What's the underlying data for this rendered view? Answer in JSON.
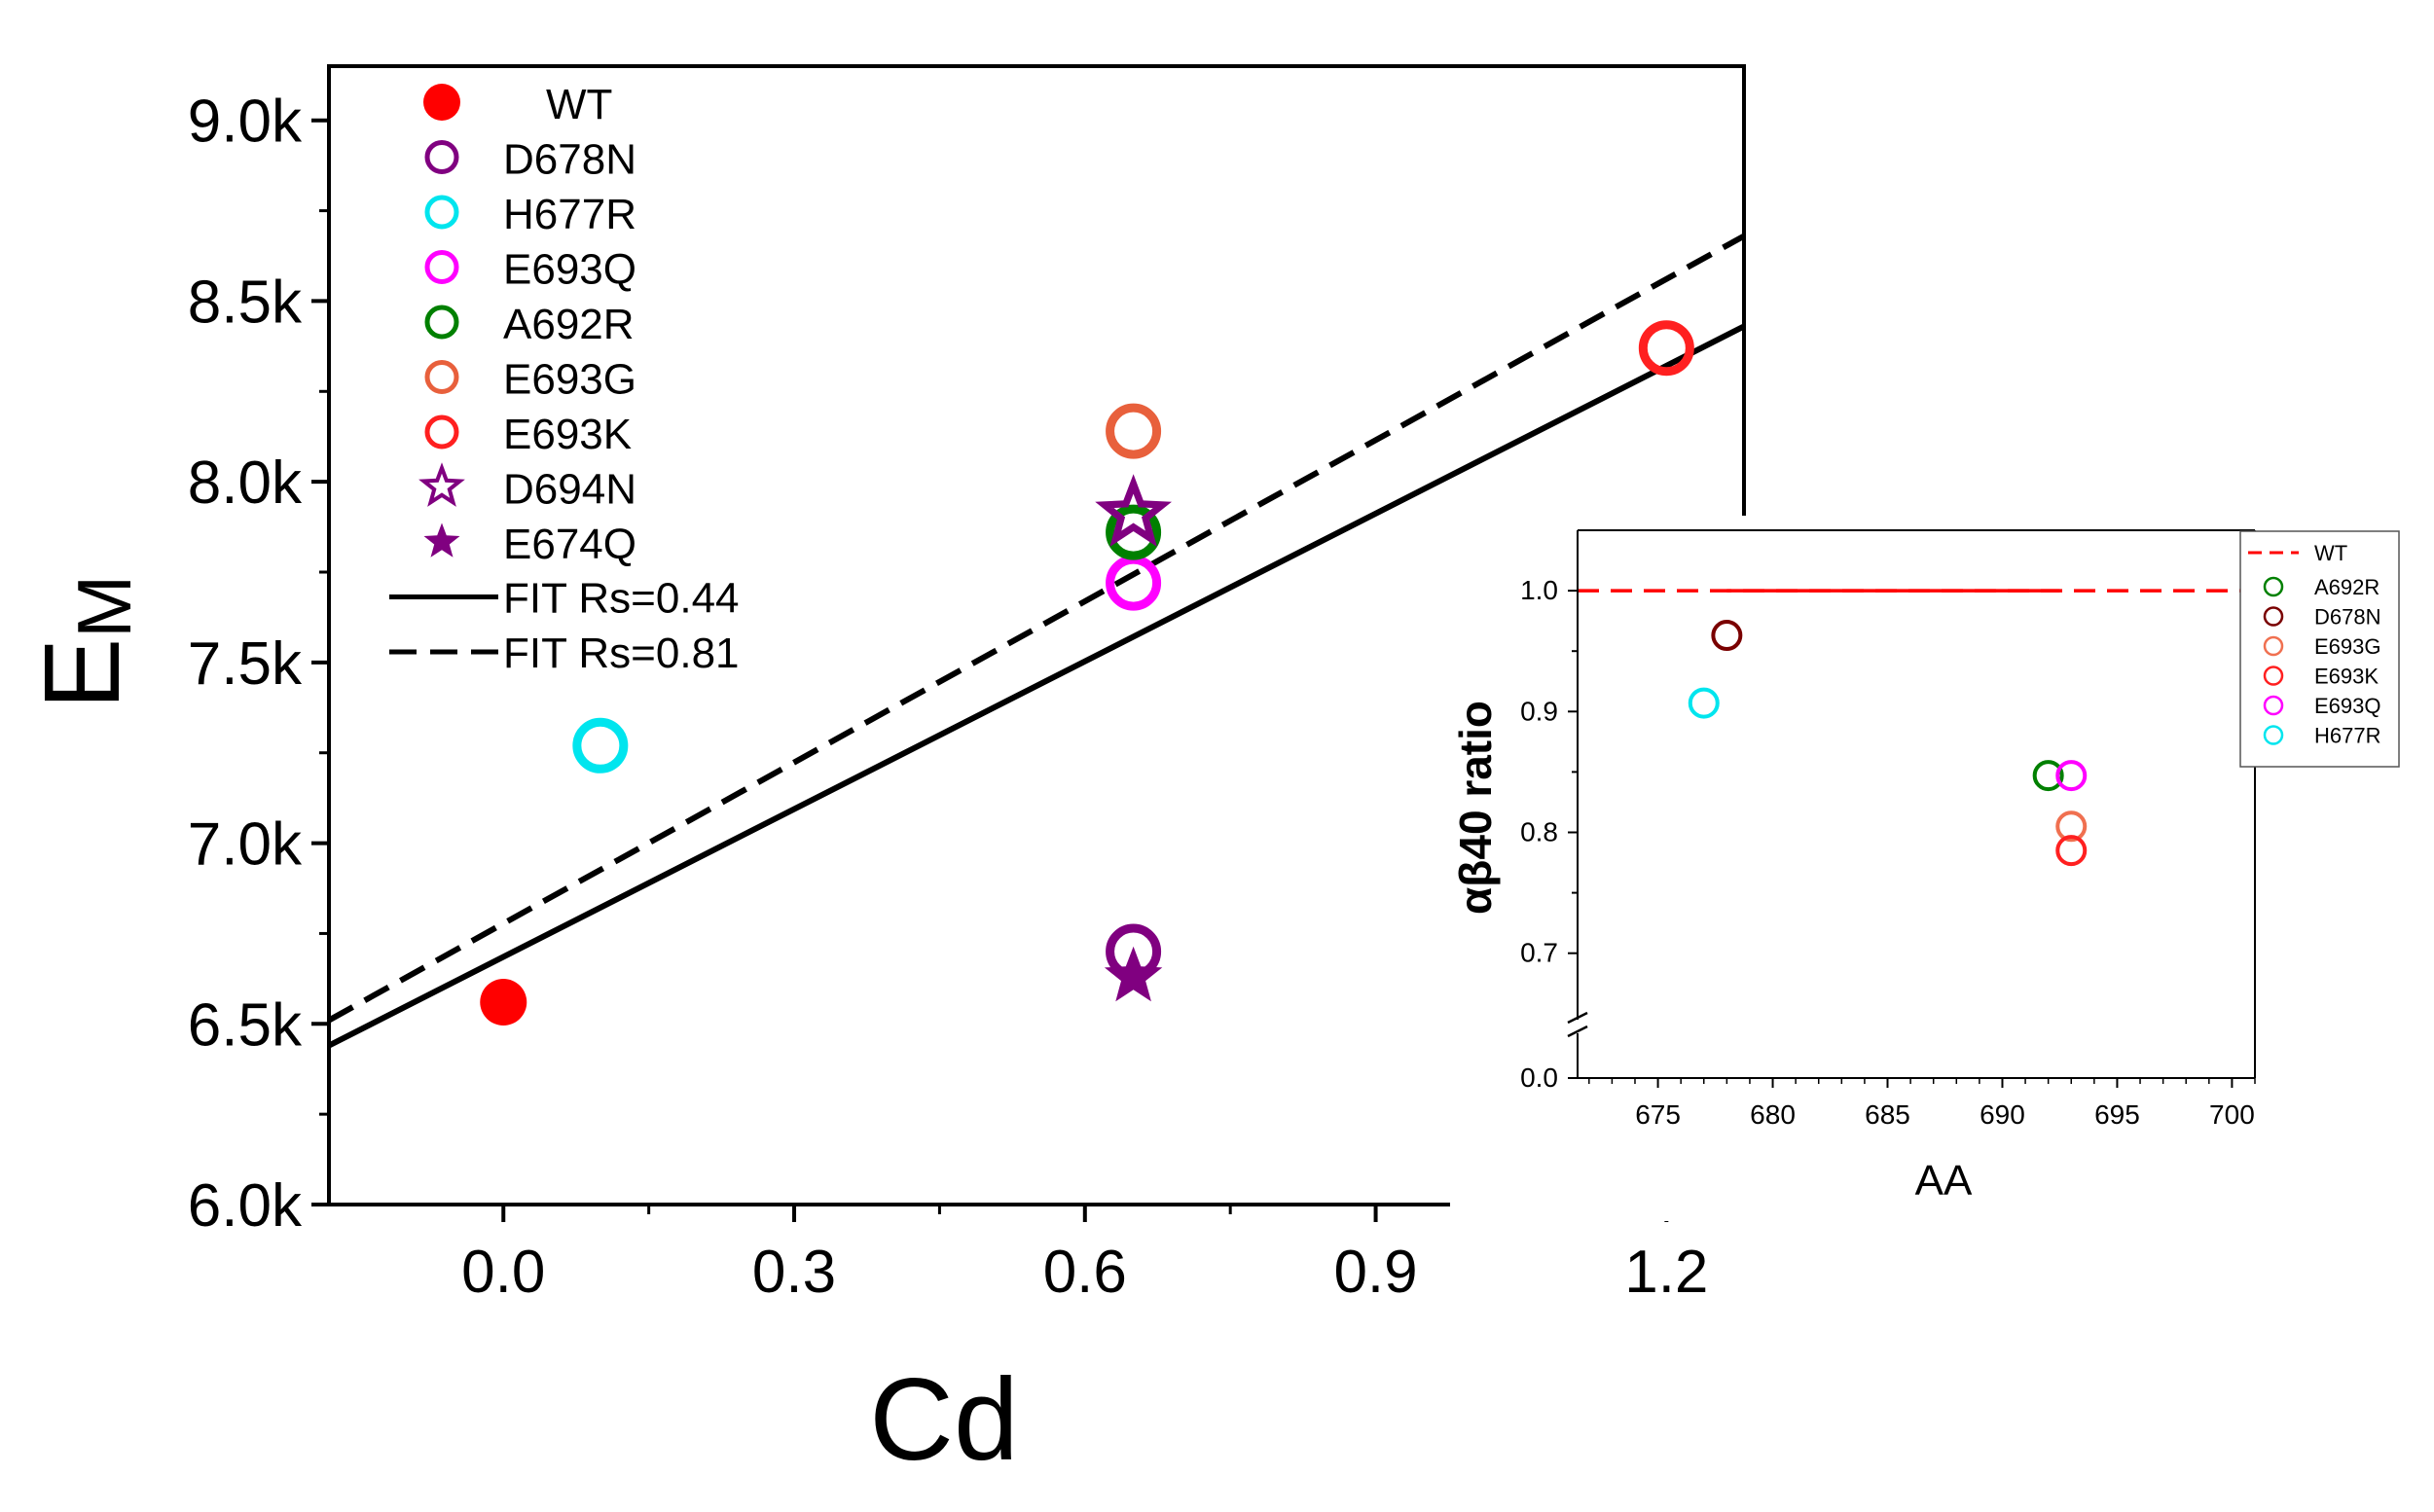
{
  "chart_data": [
    {
      "type": "scatter",
      "title": "",
      "xlabel": "Cd",
      "ylabel": "E",
      "ylabel_subscript": "M",
      "xlim": [
        -0.18,
        1.28
      ],
      "ylim": [
        6000,
        9150
      ],
      "xticks": [
        0.0,
        0.3,
        0.6,
        0.9,
        1.2
      ],
      "xtick_labels": [
        "0.0",
        "0.3",
        "0.6",
        "0.9",
        "1.2"
      ],
      "yticks": [
        6000,
        6500,
        7000,
        7500,
        8000,
        8500,
        9000
      ],
      "ytick_labels": [
        "6.0k",
        "6.5k",
        "7.0k",
        "7.5k",
        "8.0k",
        "8.5k",
        "9.0k"
      ],
      "legend_position": "top-left",
      "series": [
        {
          "name": "WT",
          "marker": "filled-circle",
          "color": "#ff0000",
          "x": [
            0.0
          ],
          "y": [
            6560
          ]
        },
        {
          "name": "D678N",
          "marker": "open-circle",
          "color": "#800080",
          "x": [
            0.65
          ],
          "y": [
            6700
          ]
        },
        {
          "name": "H677R",
          "marker": "open-circle",
          "color": "#00e5ee",
          "x": [
            0.1
          ],
          "y": [
            7270
          ]
        },
        {
          "name": "E693Q",
          "marker": "open-circle",
          "color": "#ff00ff",
          "x": [
            0.65
          ],
          "y": [
            7720
          ]
        },
        {
          "name": "A692R",
          "marker": "open-circle",
          "color": "#008000",
          "x": [
            0.65
          ],
          "y": [
            7860
          ]
        },
        {
          "name": "E693G",
          "marker": "open-circle",
          "color": "#e8603c",
          "x": [
            0.65
          ],
          "y": [
            8140
          ]
        },
        {
          "name": "E693K",
          "marker": "open-circle",
          "color": "#ff2020",
          "x": [
            1.2
          ],
          "y": [
            8370
          ]
        },
        {
          "name": "D694N",
          "marker": "open-star",
          "color": "#800080",
          "x": [
            0.65
          ],
          "y": [
            7910
          ]
        },
        {
          "name": "E674Q",
          "marker": "filled-star",
          "color": "#800080",
          "x": [
            0.65
          ],
          "y": [
            6630
          ]
        }
      ],
      "fits": [
        {
          "name": "FIT Rs=0.44",
          "style": "solid",
          "color": "#000000",
          "x": [
            -0.18,
            1.28
          ],
          "y": [
            6440,
            8430
          ]
        },
        {
          "name": "FIT Rs=0.81",
          "style": "dashed",
          "color": "#000000",
          "x": [
            -0.18,
            1.28
          ],
          "y": [
            6510,
            8680
          ]
        }
      ]
    },
    {
      "type": "scatter",
      "title": "",
      "xlabel": "AA",
      "ylabel": "αβ40 ratio",
      "xlim": [
        671.5,
        701
      ],
      "ylim_segments": [
        [
          0.0,
          0.04
        ],
        [
          0.645,
          1.05
        ]
      ],
      "xticks": [
        675,
        680,
        685,
        690,
        695,
        700
      ],
      "xtick_labels": [
        "675",
        "680",
        "685",
        "690",
        "695",
        "700"
      ],
      "yticks": [
        0.0,
        0.7,
        0.8,
        0.9,
        1.0
      ],
      "ytick_labels": [
        "0.0",
        "0.7",
        "0.8",
        "0.9",
        "1.0"
      ],
      "axis_break": "y",
      "legend_position": "top-right",
      "reference_line": {
        "name": "WT",
        "style": "dashed",
        "color": "#ff0000",
        "y": 1.0
      },
      "series": [
        {
          "name": "A692R",
          "marker": "open-circle",
          "color": "#008000",
          "x": [
            692
          ],
          "y": [
            0.847
          ]
        },
        {
          "name": "D678N",
          "marker": "open-circle",
          "color": "#7a0000",
          "x": [
            678
          ],
          "y": [
            0.963
          ]
        },
        {
          "name": "E693G",
          "marker": "open-circle",
          "color": "#f07050",
          "x": [
            693
          ],
          "y": [
            0.805
          ]
        },
        {
          "name": "E693K",
          "marker": "open-circle",
          "color": "#ff2020",
          "x": [
            693
          ],
          "y": [
            0.785
          ]
        },
        {
          "name": "E693Q",
          "marker": "open-circle",
          "color": "#ff00ff",
          "x": [
            693
          ],
          "y": [
            0.847
          ]
        },
        {
          "name": "H677R",
          "marker": "open-circle",
          "color": "#00e5ee",
          "x": [
            677
          ],
          "y": [
            0.907
          ]
        }
      ]
    }
  ]
}
